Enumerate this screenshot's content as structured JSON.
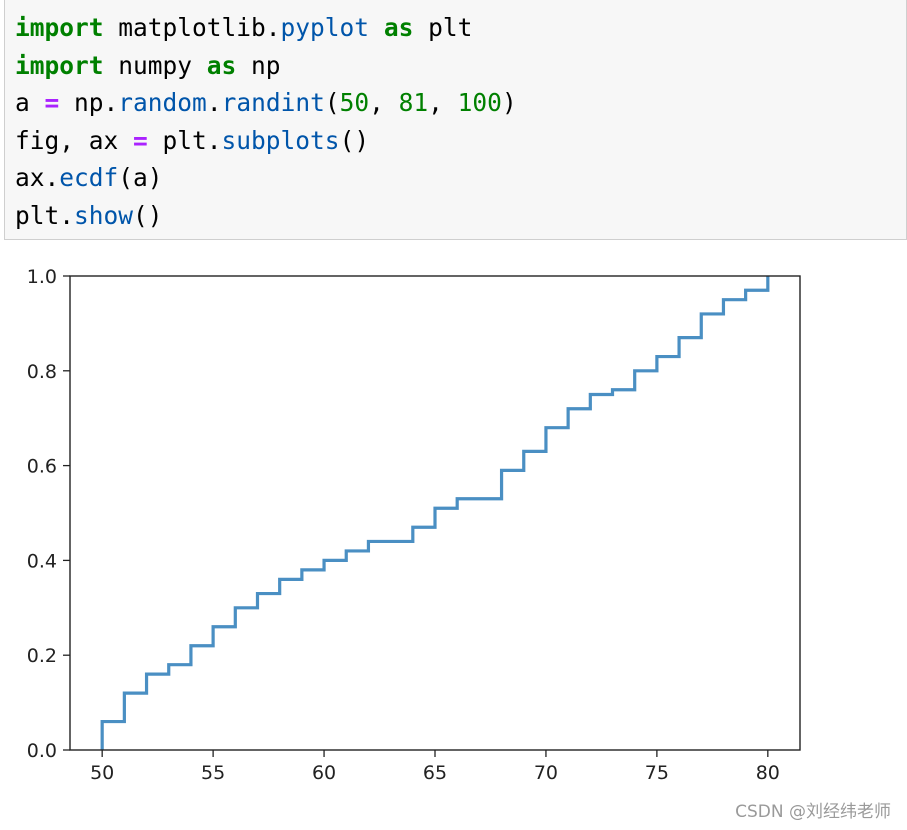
{
  "code_cell": {
    "lines": [
      [
        {
          "t": "import",
          "c": "kw"
        },
        {
          "t": " matplotlib.",
          "c": ""
        },
        {
          "t": "pyplot",
          "c": "fn"
        },
        {
          "t": " ",
          "c": ""
        },
        {
          "t": "as",
          "c": "kw"
        },
        {
          "t": " plt",
          "c": ""
        }
      ],
      [
        {
          "t": "import",
          "c": "kw"
        },
        {
          "t": " numpy ",
          "c": ""
        },
        {
          "t": "as",
          "c": "kw"
        },
        {
          "t": " np",
          "c": ""
        }
      ],
      [
        {
          "t": "a ",
          "c": ""
        },
        {
          "t": "=",
          "c": "op"
        },
        {
          "t": " np.",
          "c": ""
        },
        {
          "t": "random",
          "c": "fn"
        },
        {
          "t": ".",
          "c": ""
        },
        {
          "t": "randint",
          "c": "fn"
        },
        {
          "t": "(",
          "c": ""
        },
        {
          "t": "50",
          "c": "num"
        },
        {
          "t": ", ",
          "c": ""
        },
        {
          "t": "81",
          "c": "num"
        },
        {
          "t": ", ",
          "c": ""
        },
        {
          "t": "100",
          "c": "num"
        },
        {
          "t": ")",
          "c": ""
        }
      ],
      [
        {
          "t": "fig, ax ",
          "c": ""
        },
        {
          "t": "=",
          "c": "op"
        },
        {
          "t": " plt.",
          "c": ""
        },
        {
          "t": "subplots",
          "c": "fn"
        },
        {
          "t": "()",
          "c": ""
        }
      ],
      [
        {
          "t": "ax.",
          "c": ""
        },
        {
          "t": "ecdf",
          "c": "fn"
        },
        {
          "t": "(a)",
          "c": ""
        }
      ],
      [
        {
          "t": "plt.",
          "c": ""
        },
        {
          "t": "show",
          "c": "fn"
        },
        {
          "t": "()",
          "c": ""
        }
      ]
    ]
  },
  "chart_data": {
    "type": "line",
    "step": true,
    "series": [
      {
        "x": [
          50,
          51,
          52,
          53,
          54,
          55,
          56,
          57,
          58,
          59,
          60,
          61,
          62,
          64,
          65,
          66,
          68,
          69,
          70,
          71,
          72,
          73,
          74,
          75,
          76,
          77,
          78,
          79,
          80
        ],
        "y": [
          0.06,
          0.12,
          0.16,
          0.18,
          0.22,
          0.26,
          0.3,
          0.33,
          0.36,
          0.38,
          0.4,
          0.42,
          0.44,
          0.47,
          0.51,
          0.53,
          0.59,
          0.63,
          0.68,
          0.72,
          0.75,
          0.76,
          0.8,
          0.83,
          0.87,
          0.92,
          0.95,
          0.97,
          1.0
        ],
        "color": "#4a8fc3"
      }
    ],
    "xticks": [
      "50",
      "55",
      "60",
      "65",
      "70",
      "75",
      "80"
    ],
    "yticks": [
      "0.0",
      "0.2",
      "0.4",
      "0.6",
      "0.8",
      "1.0"
    ],
    "xlim": [
      48.55,
      81.45
    ],
    "ylim": [
      0,
      1
    ],
    "grid": false,
    "title": "",
    "xlabel": "",
    "ylabel": ""
  },
  "watermark": "CSDN @刘经纬老师"
}
